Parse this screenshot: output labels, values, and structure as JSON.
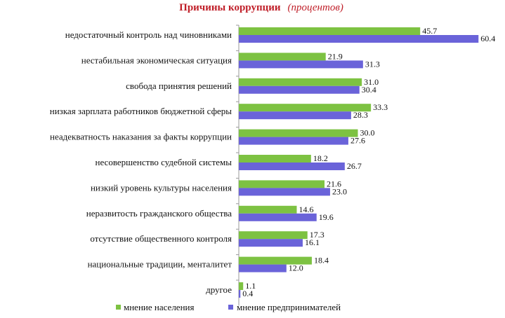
{
  "chart_data": {
    "type": "bar",
    "orientation": "horizontal",
    "title": "Причины коррупции",
    "subtitle": "(процентов)",
    "categories": [
      "недостаточный контроль над чиновниками",
      "нестабильная экономическая ситуация",
      "свобода принятия решений",
      "низкая зарплата работников бюджетной сферы",
      "неадекватность наказания за факты коррупции",
      "несовершенство судебной системы",
      "низкий уровень культуры населения",
      "неразвитость гражданского общества",
      "отсутствие общественного контроля",
      "национальные традиции, менталитет",
      "другое"
    ],
    "series": [
      {
        "name": "мнение населения",
        "color": "#7dc242",
        "values": [
          45.7,
          21.9,
          31.0,
          33.3,
          30.0,
          18.2,
          21.6,
          14.6,
          17.3,
          18.4,
          1.1
        ],
        "labels": [
          "45.7",
          "21.9",
          "31.0",
          "33.3",
          "30.0",
          "18.2",
          "21.6",
          "14.6",
          "17.3",
          "18.4",
          "1.1"
        ]
      },
      {
        "name": "мнение предпринимателей",
        "color": "#6a63d9",
        "values": [
          60.4,
          31.3,
          30.4,
          28.3,
          27.6,
          26.7,
          23.0,
          19.6,
          16.1,
          12.0,
          0.4
        ],
        "labels": [
          "60.4",
          "31.3",
          "30.4",
          "28.3",
          "27.6",
          "26.7",
          "23.0",
          "19.6",
          "16.1",
          "12.0",
          "0.4"
        ]
      }
    ],
    "xlim": [
      0,
      64
    ],
    "grid": false,
    "legend": "bottom",
    "title_color": "#c0202a"
  }
}
